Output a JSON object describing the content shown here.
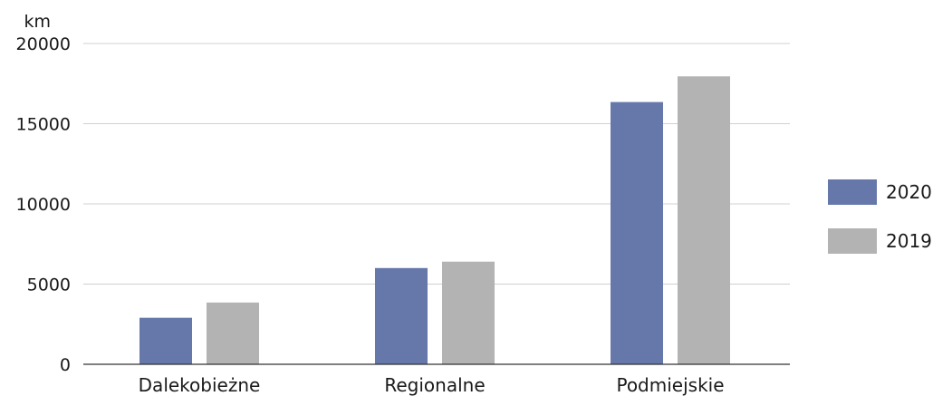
{
  "chart_data": {
    "type": "bar",
    "y_unit": "km",
    "categories": [
      "Dalekobieżne",
      "Regionalne",
      "Podmiejskie"
    ],
    "series": [
      {
        "name": "2020",
        "color": "#6677aa",
        "values": [
          2900,
          6000,
          16350
        ]
      },
      {
        "name": "2019",
        "color": "#b3b3b3",
        "values": [
          3850,
          6400,
          17950
        ]
      }
    ],
    "ylim": [
      0,
      20000
    ],
    "yticks": [
      0,
      5000,
      10000,
      15000,
      20000
    ],
    "grid": true,
    "legend_position": "right"
  }
}
